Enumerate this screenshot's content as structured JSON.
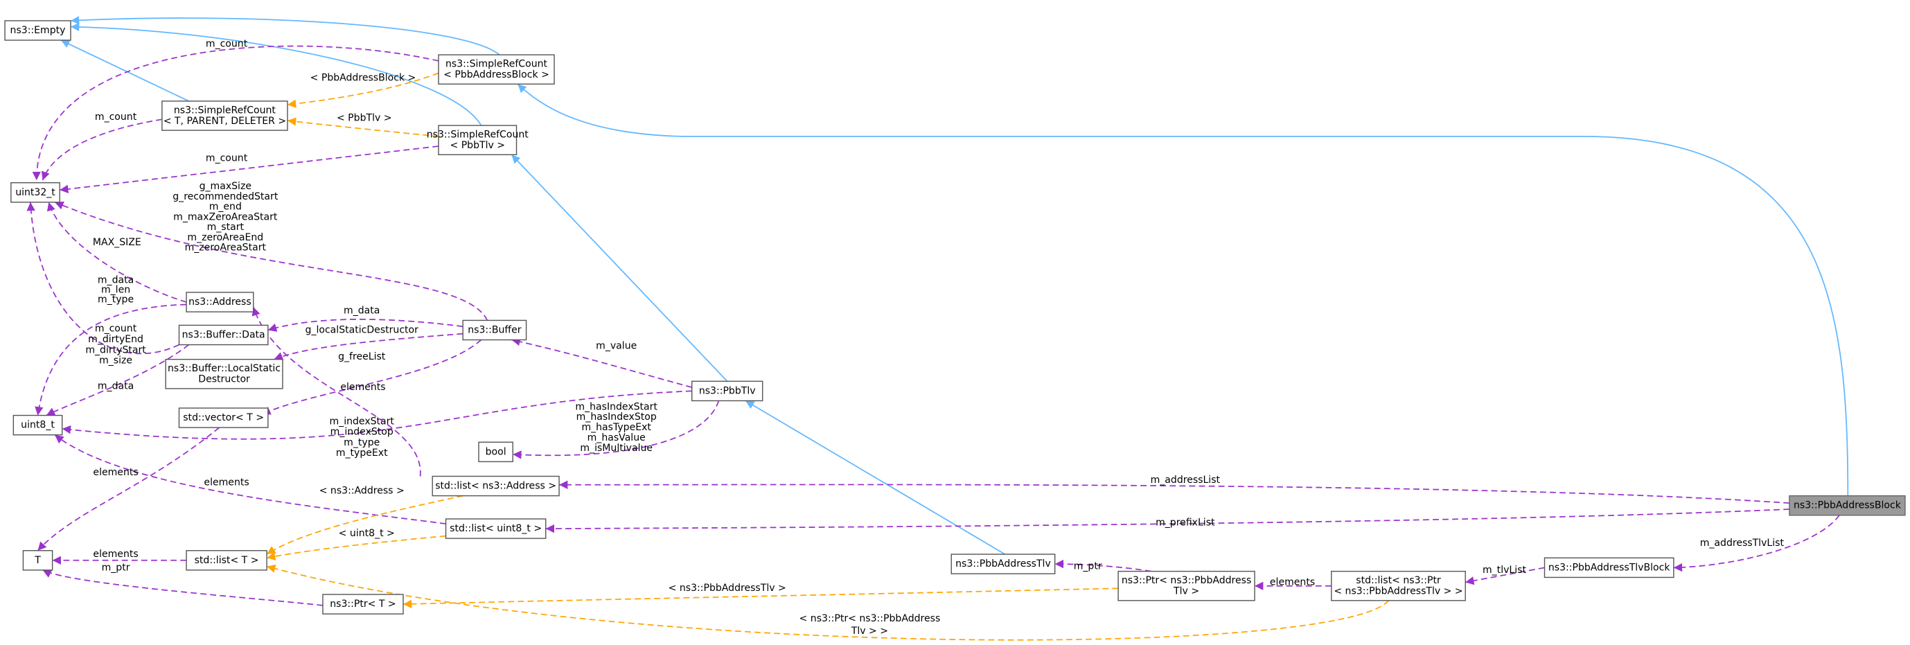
{
  "nodes": [
    {
      "label": [
        "ns3::Empty"
      ]
    },
    {
      "label": [
        "ns3::SimpleRefCount",
        "< PbbAddressBlock >"
      ]
    },
    {
      "label": [
        "ns3::SimpleRefCount",
        "< T, PARENT, DELETER >"
      ]
    },
    {
      "label": [
        "ns3::SimpleRefCount",
        "< PbbTlv >"
      ]
    },
    {
      "label": [
        "uint32_t"
      ]
    },
    {
      "label": [
        "ns3::Address"
      ]
    },
    {
      "label": [
        "ns3::Buffer::Data"
      ]
    },
    {
      "label": [
        "ns3::Buffer"
      ]
    },
    {
      "label": [
        "ns3::Buffer::LocalStatic",
        "Destructor"
      ]
    },
    {
      "label": [
        "std::vector< T >"
      ]
    },
    {
      "label": [
        "uint8_t"
      ]
    },
    {
      "label": [
        "ns3::PbbTlv"
      ]
    },
    {
      "label": [
        "bool"
      ]
    },
    {
      "label": [
        "std::list< ns3::Address >"
      ]
    },
    {
      "label": [
        "std::list< uint8_t >"
      ]
    },
    {
      "label": [
        "T"
      ]
    },
    {
      "label": [
        "std::list< T >"
      ]
    },
    {
      "label": [
        "ns3::PbbAddressTlv"
      ]
    },
    {
      "label": [
        "ns3::Ptr< T >"
      ]
    },
    {
      "label": [
        "ns3::Ptr< ns3::PbbAddress",
        "Tlv >"
      ]
    },
    {
      "label": [
        "std::list< ns3::Ptr",
        "< ns3::PbbAddressTlv > >"
      ]
    },
    {
      "label": [
        "ns3::PbbAddressTlvBlock"
      ]
    },
    {
      "label": [
        "ns3::PbbAddressBlock"
      ]
    }
  ],
  "edges": [
    {
      "label": [
        "m_count"
      ]
    },
    {
      "label": [
        "m_count"
      ]
    },
    {
      "label": [
        "m_count"
      ]
    },
    {
      "label": [
        "g_maxSize",
        "g_recommendedStart",
        "m_end",
        "m_maxZeroAreaStart",
        "m_start",
        "m_zeroAreaEnd",
        "m_zeroAreaStart"
      ]
    },
    {
      "label": [
        "MAX_SIZE"
      ]
    },
    {
      "label": [
        "m_data",
        "m_len",
        "m_type"
      ]
    },
    {
      "label": [
        "m_count",
        "m_dirtyEnd",
        "m_dirtyStart",
        "m_size"
      ]
    },
    {
      "label": [
        "m_data"
      ]
    },
    {
      "label": [
        "m_data"
      ]
    },
    {
      "label": [
        "g_localStaticDestructor"
      ]
    },
    {
      "label": [
        "g_freeList"
      ]
    },
    {
      "label": [
        "m_value"
      ]
    },
    {
      "label": [
        "m_indexStart",
        "m_indexStop",
        "m_type",
        "m_typeExt"
      ]
    },
    {
      "label": [
        "m_hasIndexStart",
        "m_hasIndexStop",
        "m_hasTypeExt",
        "m_hasValue",
        "m_isMultivalue"
      ]
    },
    {
      "label": [
        "elements"
      ]
    },
    {
      "label": [
        "elements"
      ]
    },
    {
      "label": [
        "elements"
      ]
    },
    {
      "label": [
        "elements"
      ]
    },
    {
      "label": [
        "m_ptr"
      ]
    },
    {
      "label": [
        "m_addressList"
      ]
    },
    {
      "label": [
        "m_prefixList"
      ]
    },
    {
      "label": [
        "m_addressTlvList"
      ]
    },
    {
      "label": [
        "m_tlvList"
      ]
    },
    {
      "label": [
        "elements"
      ]
    },
    {
      "label": [
        "m_ptr"
      ]
    },
    {
      "label": [
        "< PbbAddressBlock >"
      ]
    },
    {
      "label": [
        "< PbbTlv >"
      ]
    },
    {
      "label": [
        "< ns3::Address >"
      ]
    },
    {
      "label": [
        "< uint8_t >"
      ]
    },
    {
      "label": [
        "< ns3::PbbAddressTlv >"
      ]
    },
    {
      "label": [
        "< ns3::Ptr< ns3::PbbAddress",
        "Tlv > >"
      ]
    }
  ]
}
